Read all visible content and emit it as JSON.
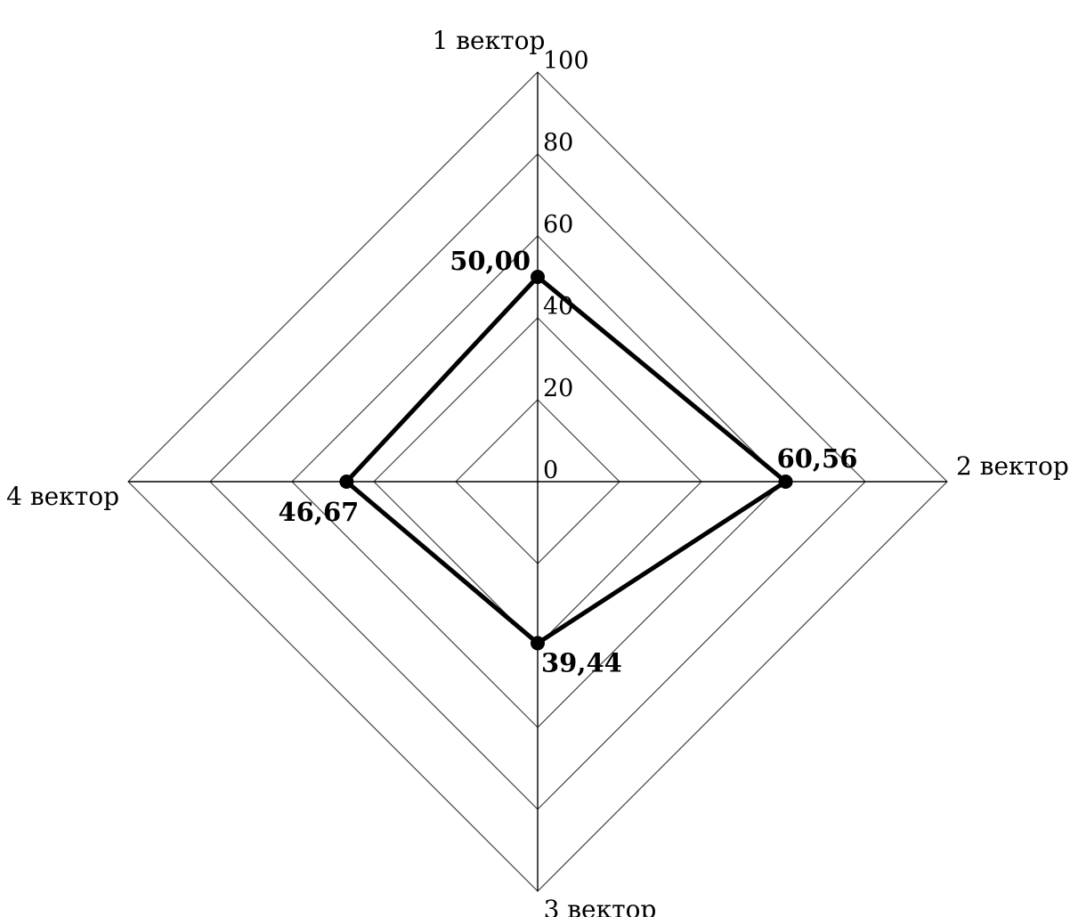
{
  "chart_data": {
    "type": "radar",
    "axes": [
      "1 вектор",
      "2 вектор",
      "3 вектор",
      "4 вектор"
    ],
    "range": [
      0,
      100
    ],
    "ticks": [
      "0",
      "20",
      "40",
      "60",
      "80",
      "100"
    ],
    "tick_values": [
      0,
      20,
      40,
      60,
      80,
      100
    ],
    "grid_shape": "diamond",
    "legend": "none",
    "series": [
      {
        "values": [
          50.0,
          60.56,
          39.44,
          46.67
        ],
        "labels": [
          "50,00",
          "60,56",
          "39,44",
          "46,67"
        ],
        "color": "#000000"
      }
    ]
  }
}
